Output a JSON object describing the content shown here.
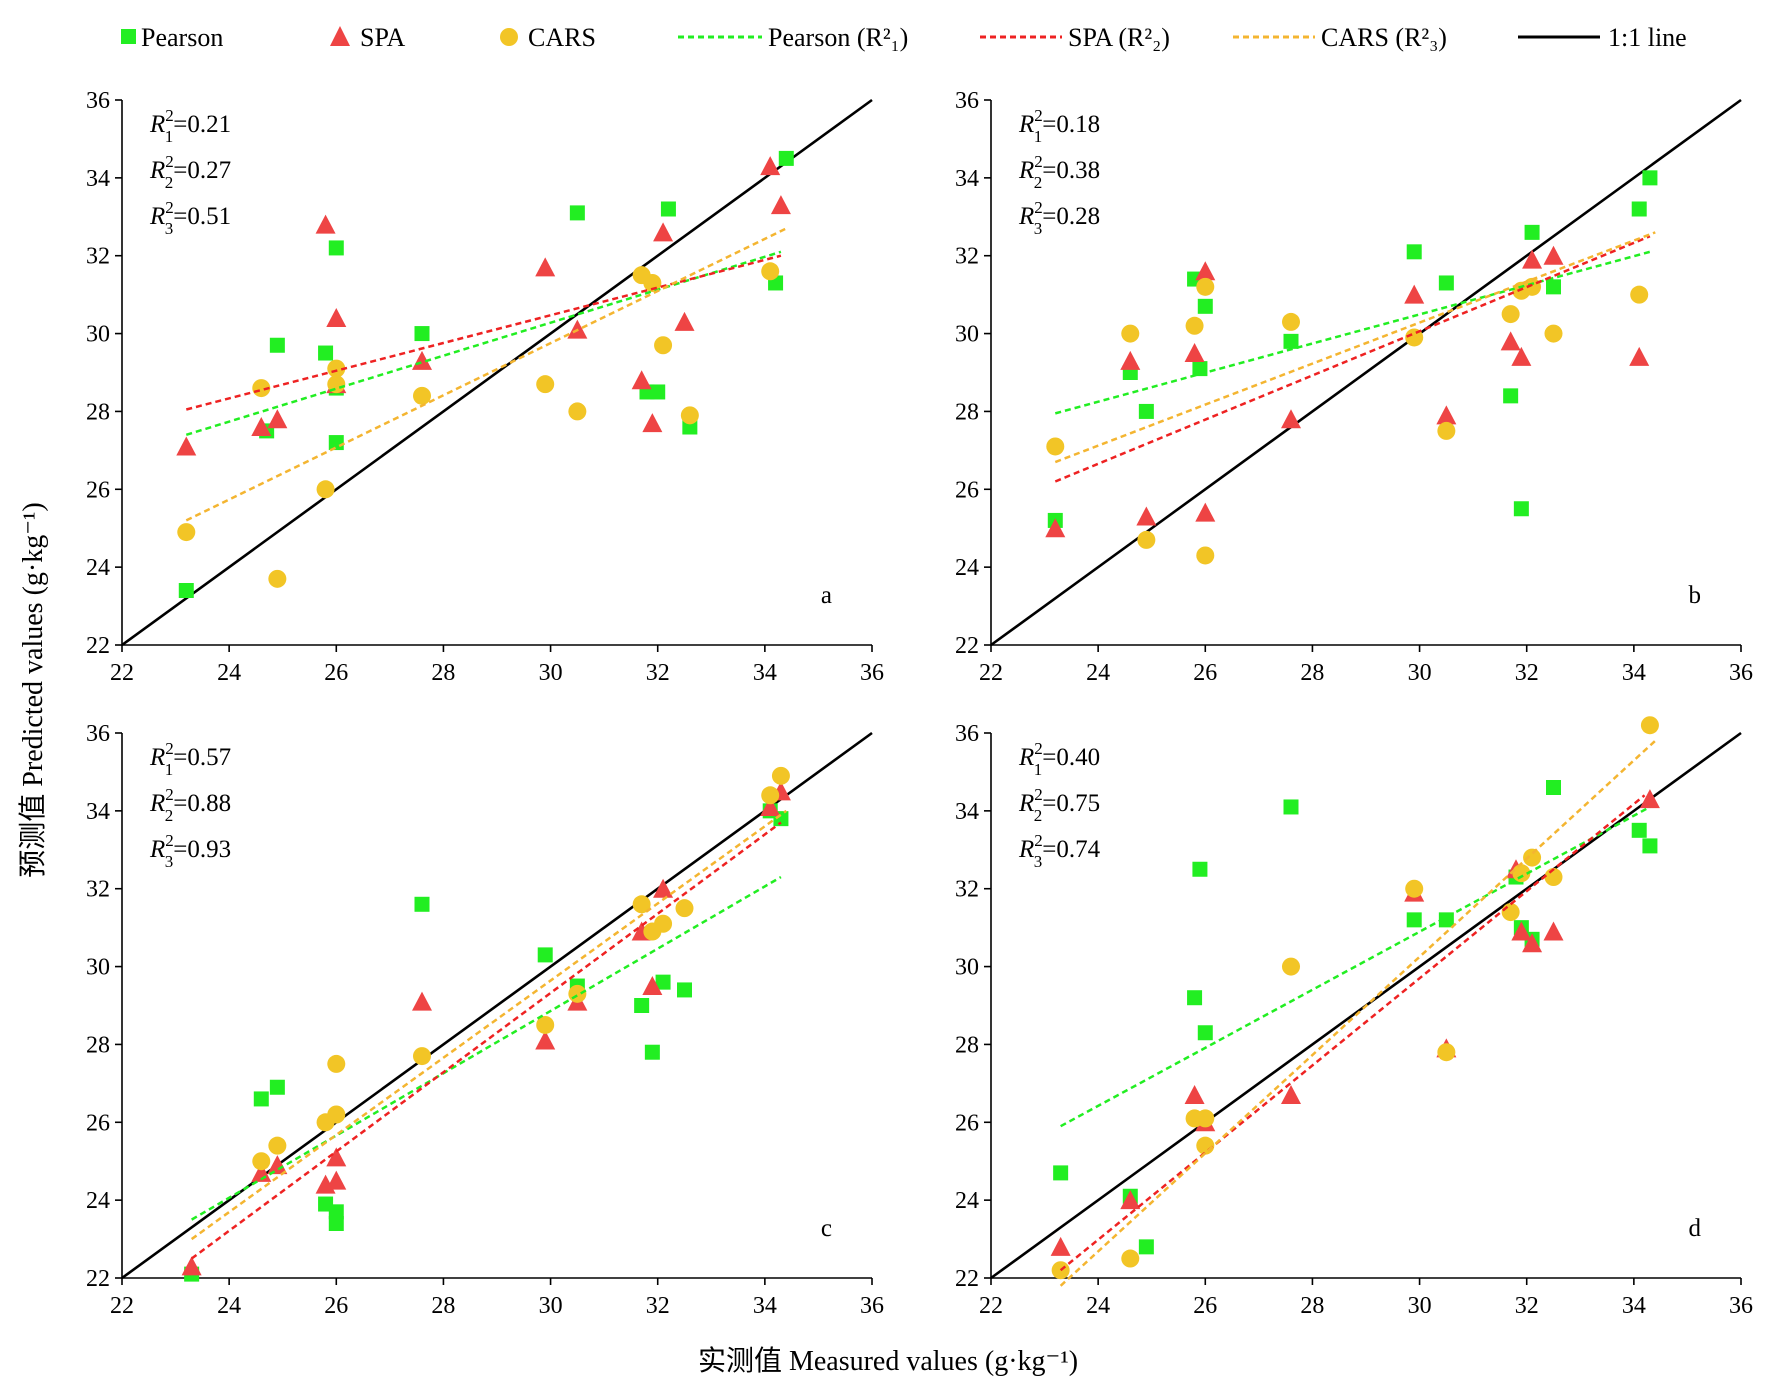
{
  "legend": {
    "pearson": "Pearson",
    "spa": "SPA",
    "cars": "CARS",
    "pearson_fit": "Pearson (R²₁)",
    "spa_fit": "SPA (R²₂)",
    "cars_fit": "CARS (R²₃)",
    "one_to_one": "1:1 line"
  },
  "colors": {
    "pearson": "#22ee22",
    "spa": "#ee4444",
    "cars": "#f2c526",
    "pearson_fit": "#22ee22",
    "spa_fit": "#ee2222",
    "cars_fit": "#f4b531",
    "one_to_one": "#000000"
  },
  "axes": {
    "x_title": "实测值 Measured values (g·kg⁻¹)",
    "y_title": "预测值 Predicted values (g·kg⁻¹)",
    "ticks": [
      "22",
      "24",
      "26",
      "28",
      "30",
      "32",
      "34",
      "36"
    ]
  },
  "chart_data": [
    {
      "type": "scatter",
      "panel": "a",
      "xlim": [
        22,
        36
      ],
      "ylim": [
        22,
        36
      ],
      "r2_labels": [
        "R²₁=0.21",
        "R²₂=0.27",
        "R²₃=0.51"
      ],
      "fits": {
        "pearson": [
          [
            23.2,
            27.4
          ],
          [
            34.3,
            32.1
          ]
        ],
        "spa": [
          [
            23.2,
            28.05
          ],
          [
            34.3,
            32.0
          ]
        ],
        "cars": [
          [
            23.2,
            25.2
          ],
          [
            34.4,
            32.7
          ]
        ]
      },
      "series": [
        {
          "key": "pearson",
          "x": [
            23.2,
            24.7,
            24.9,
            25.8,
            26.0,
            26.0,
            27.6,
            30.5,
            31.8,
            32.2,
            32.6,
            34.2,
            34.4,
            32.0,
            26.0
          ],
          "y": [
            23.4,
            27.5,
            29.7,
            29.5,
            27.2,
            32.2,
            30.0,
            33.1,
            28.5,
            33.2,
            27.6,
            31.3,
            34.5,
            28.5,
            28.6
          ]
        },
        {
          "key": "spa",
          "x": [
            23.2,
            24.6,
            24.9,
            25.8,
            26.0,
            26.0,
            27.6,
            29.9,
            30.5,
            31.7,
            31.9,
            32.1,
            32.5,
            34.1,
            34.3
          ],
          "y": [
            27.1,
            27.6,
            27.8,
            32.8,
            30.4,
            28.7,
            29.3,
            31.7,
            30.1,
            28.8,
            27.7,
            32.6,
            30.3,
            34.3,
            33.3
          ]
        },
        {
          "key": "cars",
          "x": [
            23.2,
            24.6,
            24.9,
            25.8,
            26.0,
            26.0,
            27.6,
            29.9,
            30.5,
            31.7,
            31.9,
            32.1,
            32.6,
            34.1
          ],
          "y": [
            24.9,
            28.6,
            23.7,
            26.0,
            28.7,
            29.1,
            28.4,
            28.7,
            28.0,
            31.5,
            31.3,
            29.7,
            27.9,
            31.6
          ]
        }
      ]
    },
    {
      "type": "scatter",
      "panel": "b",
      "xlim": [
        22,
        36
      ],
      "ylim": [
        22,
        36
      ],
      "r2_labels": [
        "R²₁=0.18",
        "R²₂=0.38",
        "R²₃=0.28"
      ],
      "fits": {
        "pearson": [
          [
            23.2,
            27.95
          ],
          [
            34.3,
            32.1
          ]
        ],
        "spa": [
          [
            23.2,
            26.2
          ],
          [
            34.3,
            32.5
          ]
        ],
        "cars": [
          [
            23.2,
            26.7
          ],
          [
            34.4,
            32.6
          ]
        ]
      },
      "series": [
        {
          "key": "pearson",
          "x": [
            23.2,
            24.6,
            24.9,
            25.8,
            25.9,
            26.0,
            27.6,
            29.9,
            30.5,
            31.7,
            31.9,
            32.1,
            32.5,
            34.1,
            34.3
          ],
          "y": [
            25.2,
            29.0,
            28.0,
            31.4,
            29.1,
            30.7,
            29.8,
            32.1,
            31.3,
            28.4,
            25.5,
            32.6,
            31.2,
            33.2,
            34.0
          ]
        },
        {
          "key": "spa",
          "x": [
            23.2,
            24.6,
            24.9,
            25.8,
            26.0,
            26.0,
            27.6,
            29.9,
            30.5,
            31.7,
            31.9,
            32.1,
            32.5,
            34.1
          ],
          "y": [
            25.0,
            29.3,
            25.3,
            29.5,
            31.6,
            25.4,
            27.8,
            31.0,
            27.9,
            29.8,
            29.4,
            31.9,
            32.0,
            29.4
          ]
        },
        {
          "key": "cars",
          "x": [
            23.2,
            24.6,
            24.9,
            25.8,
            26.0,
            26.0,
            27.6,
            29.9,
            30.5,
            31.7,
            31.9,
            32.1,
            32.5,
            34.1
          ],
          "y": [
            27.1,
            30.0,
            24.7,
            30.2,
            31.2,
            24.3,
            30.3,
            29.9,
            27.5,
            30.5,
            31.1,
            31.2,
            30.0,
            31.0
          ]
        }
      ]
    },
    {
      "type": "scatter",
      "panel": "c",
      "xlim": [
        22,
        36
      ],
      "ylim": [
        22,
        36
      ],
      "r2_labels": [
        "R²₁=0.57",
        "R²₂=0.88",
        "R²₃=0.93"
      ],
      "fits": {
        "pearson": [
          [
            23.3,
            23.5
          ],
          [
            34.3,
            32.3
          ]
        ],
        "spa": [
          [
            23.3,
            22.5
          ],
          [
            34.3,
            33.7
          ]
        ],
        "cars": [
          [
            23.3,
            23.0
          ],
          [
            34.4,
            34.0
          ]
        ]
      },
      "series": [
        {
          "key": "pearson",
          "x": [
            23.3,
            24.6,
            24.9,
            25.8,
            26.0,
            26.0,
            27.6,
            29.9,
            30.5,
            31.7,
            31.9,
            32.1,
            32.5,
            34.1,
            34.3
          ],
          "y": [
            22.1,
            26.6,
            26.9,
            23.9,
            23.7,
            23.4,
            31.6,
            30.3,
            29.5,
            29.0,
            27.8,
            29.6,
            29.4,
            34.0,
            33.8
          ]
        },
        {
          "key": "spa",
          "x": [
            23.3,
            24.6,
            24.9,
            25.8,
            26.0,
            26.0,
            27.6,
            29.9,
            30.5,
            31.7,
            31.9,
            32.1,
            34.1,
            34.3
          ],
          "y": [
            22.3,
            24.7,
            24.9,
            24.4,
            25.1,
            24.5,
            29.1,
            28.1,
            29.1,
            30.9,
            29.5,
            32.0,
            34.1,
            34.5
          ]
        },
        {
          "key": "cars",
          "x": [
            24.6,
            24.9,
            25.8,
            26.0,
            26.0,
            27.6,
            29.9,
            30.5,
            31.7,
            31.9,
            32.1,
            32.5,
            34.1,
            34.3
          ],
          "y": [
            25.0,
            25.4,
            26.0,
            27.5,
            26.2,
            27.7,
            28.5,
            29.3,
            31.6,
            30.9,
            31.1,
            31.5,
            34.4,
            34.9
          ]
        }
      ]
    },
    {
      "type": "scatter",
      "panel": "d",
      "xlim": [
        22,
        36
      ],
      "ylim": [
        22,
        36
      ],
      "r2_labels": [
        "R²₁=0.40",
        "R²₂=0.75",
        "R²₃=0.74"
      ],
      "fits": {
        "pearson": [
          [
            23.3,
            25.9
          ],
          [
            34.3,
            34.1
          ]
        ],
        "spa": [
          [
            23.3,
            22.2
          ],
          [
            34.2,
            34.4
          ]
        ],
        "cars": [
          [
            23.3,
            21.8
          ],
          [
            34.4,
            35.8
          ]
        ]
      },
      "series": [
        {
          "key": "pearson",
          "x": [
            23.3,
            24.6,
            24.9,
            25.8,
            25.9,
            26.0,
            27.6,
            29.9,
            30.5,
            31.8,
            31.9,
            32.1,
            32.5,
            34.1,
            34.3
          ],
          "y": [
            24.7,
            24.1,
            22.8,
            29.2,
            32.5,
            28.3,
            34.1,
            31.2,
            31.2,
            32.3,
            31.0,
            30.7,
            34.6,
            33.5,
            33.1
          ]
        },
        {
          "key": "spa",
          "x": [
            23.3,
            24.6,
            25.8,
            26.0,
            27.6,
            29.9,
            30.5,
            31.8,
            31.9,
            32.1,
            32.5,
            34.3
          ],
          "y": [
            22.8,
            24.0,
            26.7,
            26.0,
            26.7,
            31.9,
            27.9,
            32.5,
            30.9,
            30.6,
            30.9,
            34.3
          ]
        },
        {
          "key": "cars",
          "x": [
            23.3,
            24.6,
            25.8,
            26.0,
            26.0,
            27.6,
            29.9,
            30.5,
            31.7,
            31.9,
            32.1,
            32.5,
            34.3
          ],
          "y": [
            22.2,
            22.5,
            26.1,
            26.1,
            25.4,
            30.0,
            32.0,
            27.8,
            31.4,
            32.4,
            32.8,
            32.3,
            36.2
          ]
        }
      ]
    }
  ]
}
